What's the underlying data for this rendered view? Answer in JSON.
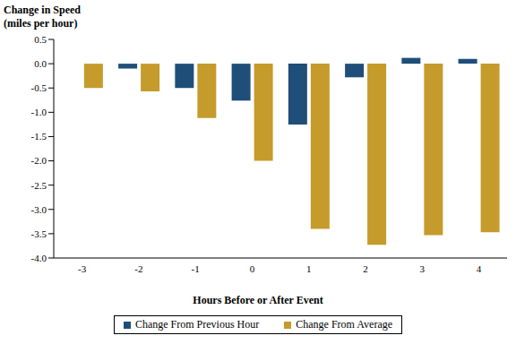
{
  "chart_data": {
    "type": "bar",
    "y_label": "Change in Speed\n(miles per hour)",
    "x_label": "Hours Before or After Event",
    "categories": [
      -3,
      -2,
      -1,
      0,
      1,
      2,
      3,
      4
    ],
    "series": [
      {
        "name": "Change From Previous Hour",
        "color": "#1F4E79",
        "values": [
          null,
          -0.1,
          -0.5,
          -0.76,
          -1.25,
          -0.28,
          0.12,
          0.1
        ]
      },
      {
        "name": "Change From Average",
        "color": "#C59B2C",
        "values": [
          -0.5,
          -0.57,
          -1.12,
          -2.0,
          -3.4,
          -3.73,
          -3.53,
          -3.47
        ]
      }
    ],
    "ylim": [
      -4.0,
      0.5
    ],
    "yticks": [
      0.5,
      {
        "value": 0,
        "label": "0.0"
      },
      -0.5,
      {
        "value": -1,
        "label": "-1.0"
      },
      -1.5,
      {
        "value": -2,
        "label": "-2.0"
      },
      -2.5,
      {
        "value": -3,
        "label": "-3.0"
      },
      -3.5,
      {
        "value": -4,
        "label": "-4.0"
      }
    ],
    "legend": "bottom",
    "grid": false
  }
}
